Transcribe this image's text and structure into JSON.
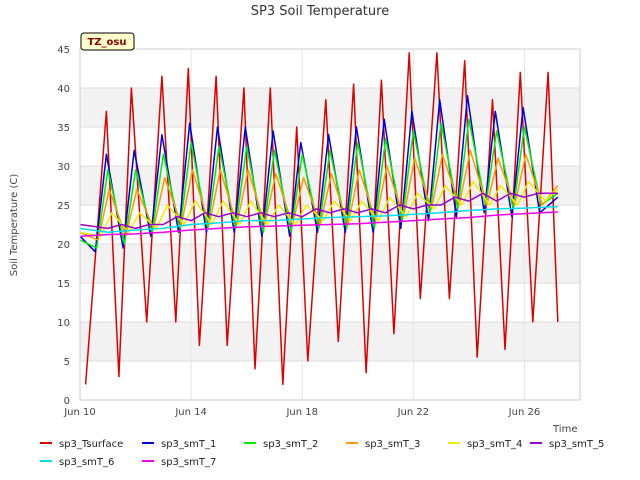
{
  "chart_data": {
    "type": "line",
    "title": "SP3 Soil Temperature",
    "xlabel": "Time",
    "ylabel": "Soil Temperature (C)",
    "badge": "TZ_osu",
    "xlim": [
      0,
      18
    ],
    "ylim": [
      0,
      45
    ],
    "y_ticks": [
      0,
      5,
      10,
      15,
      20,
      25,
      30,
      35,
      40,
      45
    ],
    "x_ticks": [
      {
        "x": 0,
        "label": "Jun 10"
      },
      {
        "x": 4,
        "label": "Jun 14"
      },
      {
        "x": 8,
        "label": "Jun 18"
      },
      {
        "x": 12,
        "label": "Jun 22"
      },
      {
        "x": 16,
        "label": "Jun 26"
      }
    ],
    "grid": true,
    "legend_position": "bottom",
    "series": [
      {
        "name": "sp3_Tsurface",
        "color": "#dd0000",
        "x": [
          0.2,
          0.95,
          1.4,
          1.85,
          2.4,
          2.95,
          3.45,
          3.9,
          4.3,
          4.9,
          5.3,
          5.9,
          6.3,
          6.85,
          7.3,
          7.8,
          8.2,
          8.85,
          9.3,
          9.85,
          10.3,
          10.85,
          11.3,
          11.85,
          12.25,
          12.85,
          13.3,
          13.85,
          14.3,
          14.85,
          15.3,
          15.85,
          16.3,
          16.85,
          17.2
        ],
        "values": [
          2.0,
          37.0,
          3.0,
          40.0,
          10.0,
          41.5,
          10.0,
          42.5,
          7.0,
          41.5,
          7.0,
          40.0,
          4.0,
          40.0,
          2.0,
          35.0,
          5.0,
          38.5,
          7.5,
          40.5,
          3.5,
          41.0,
          8.5,
          44.5,
          13.0,
          44.5,
          13.0,
          43.5,
          5.5,
          38.5,
          6.5,
          42.0,
          10.0,
          42.0,
          10.0
        ]
      },
      {
        "name": "sp3_smT_1",
        "color": "#0000dd",
        "x": [
          0,
          0.55,
          0.95,
          1.55,
          1.95,
          2.55,
          2.95,
          3.55,
          3.95,
          4.55,
          4.95,
          5.55,
          5.95,
          6.55,
          6.95,
          7.55,
          7.95,
          8.55,
          8.95,
          9.55,
          9.95,
          10.55,
          10.95,
          11.55,
          11.95,
          12.55,
          12.95,
          13.55,
          13.95,
          14.55,
          14.95,
          15.55,
          15.95,
          16.55,
          17.2
        ],
        "values": [
          21.0,
          19.0,
          31.5,
          19.5,
          32.0,
          21.0,
          34.0,
          21.5,
          35.5,
          21.5,
          35.0,
          21.5,
          35.0,
          21.0,
          34.5,
          21.0,
          33.0,
          21.5,
          34.0,
          21.5,
          35.0,
          21.5,
          36.0,
          22.0,
          37.0,
          23.0,
          38.5,
          23.5,
          39.0,
          24.0,
          37.0,
          23.5,
          37.5,
          24.0,
          26.0
        ]
      },
      {
        "name": "sp3_smT_2",
        "color": "#00ee00",
        "x": [
          0,
          0.6,
          1.0,
          1.6,
          2.0,
          2.6,
          3.0,
          3.6,
          4.0,
          4.6,
          5.0,
          5.6,
          6.0,
          6.6,
          7.0,
          7.6,
          8.0,
          8.6,
          9.0,
          9.6,
          10.0,
          10.6,
          11.0,
          11.6,
          12.0,
          12.6,
          13.0,
          13.6,
          14.0,
          14.6,
          15.0,
          15.6,
          16.0,
          16.6,
          17.2
        ],
        "values": [
          20.5,
          19.5,
          29.5,
          20.0,
          29.5,
          21.5,
          31.5,
          22.0,
          33.0,
          22.0,
          32.5,
          22.0,
          32.5,
          21.5,
          32.0,
          21.5,
          31.5,
          22.0,
          32.0,
          22.0,
          33.0,
          22.0,
          33.5,
          23.0,
          34.5,
          24.0,
          35.5,
          24.5,
          36.0,
          25.0,
          34.5,
          24.5,
          35.0,
          25.0,
          26.5
        ]
      },
      {
        "name": "sp3_smT_3",
        "color": "#ff9900",
        "x": [
          0,
          0.65,
          1.05,
          1.65,
          2.05,
          2.65,
          3.05,
          3.65,
          4.05,
          4.65,
          5.05,
          5.65,
          6.05,
          6.65,
          7.05,
          7.65,
          8.05,
          8.65,
          9.05,
          9.65,
          10.05,
          10.65,
          11.05,
          11.65,
          12.05,
          12.65,
          13.05,
          13.65,
          14.05,
          14.65,
          15.05,
          15.65,
          16.05,
          16.65,
          17.2
        ],
        "values": [
          21.5,
          20.5,
          27.0,
          21.0,
          27.0,
          22.0,
          28.5,
          22.5,
          29.5,
          22.5,
          29.5,
          22.5,
          29.5,
          22.5,
          29.0,
          22.5,
          28.5,
          22.5,
          29.0,
          22.5,
          29.5,
          23.0,
          30.0,
          23.5,
          31.0,
          24.5,
          31.5,
          25.0,
          32.0,
          25.0,
          31.0,
          25.0,
          31.5,
          25.0,
          27.5
        ]
      },
      {
        "name": "sp3_smT_4",
        "color": "#eeee00",
        "x": [
          0,
          0.75,
          1.15,
          1.75,
          2.15,
          2.75,
          3.15,
          3.75,
          4.15,
          4.75,
          5.15,
          5.75,
          6.15,
          6.75,
          7.15,
          7.75,
          8.15,
          8.75,
          9.15,
          9.75,
          10.15,
          10.75,
          11.15,
          11.75,
          12.15,
          12.75,
          13.15,
          13.75,
          14.15,
          14.75,
          15.15,
          15.75,
          16.15,
          16.75,
          17.2
        ],
        "values": [
          21.5,
          21.0,
          24.0,
          21.5,
          24.0,
          22.0,
          25.0,
          22.5,
          25.5,
          22.5,
          25.5,
          22.5,
          25.5,
          22.5,
          25.0,
          22.5,
          25.0,
          23.0,
          25.5,
          23.0,
          25.5,
          23.0,
          26.0,
          23.5,
          26.5,
          24.5,
          27.5,
          25.0,
          28.0,
          25.0,
          27.5,
          25.0,
          28.0,
          25.5,
          27.0
        ]
      },
      {
        "name": "sp3_smT_5",
        "color": "#9900cc",
        "x": [
          0,
          1.0,
          1.5,
          2.0,
          2.5,
          3.0,
          3.5,
          4.0,
          4.5,
          5.0,
          5.5,
          6.0,
          6.5,
          7.0,
          7.5,
          8.0,
          8.5,
          9.0,
          9.5,
          10.0,
          10.5,
          11.0,
          11.5,
          12.0,
          12.5,
          13.0,
          13.5,
          14.0,
          14.5,
          15.0,
          15.5,
          16.0,
          16.5,
          17.2
        ],
        "values": [
          22.5,
          22.0,
          22.5,
          22.0,
          22.5,
          22.5,
          23.5,
          23.0,
          24.0,
          23.5,
          24.0,
          23.5,
          24.0,
          23.5,
          24.0,
          23.5,
          24.5,
          24.0,
          24.5,
          24.0,
          24.5,
          24.0,
          25.0,
          24.5,
          25.0,
          25.0,
          26.0,
          25.5,
          26.5,
          25.5,
          26.5,
          26.0,
          26.5,
          26.5
        ]
      },
      {
        "name": "sp3_smT_6",
        "color": "#00ddee",
        "x": [
          0,
          1,
          2,
          3,
          4,
          5,
          6,
          7,
          8,
          9,
          10,
          11,
          12,
          13,
          14,
          15,
          16,
          17.2
        ],
        "values": [
          22.0,
          21.5,
          21.8,
          22.0,
          22.5,
          22.7,
          23.0,
          23.0,
          23.2,
          23.4,
          23.5,
          23.6,
          23.8,
          24.0,
          24.3,
          24.5,
          24.6,
          24.8
        ]
      },
      {
        "name": "sp3_smT_7",
        "color": "#ee00ee",
        "x": [
          0,
          1,
          2,
          3,
          4,
          5,
          6,
          7,
          8,
          9,
          10,
          11,
          12,
          13,
          14,
          15,
          16,
          17.2
        ],
        "values": [
          21.0,
          21.2,
          21.3,
          21.5,
          21.8,
          22.0,
          22.2,
          22.3,
          22.4,
          22.5,
          22.6,
          22.8,
          23.0,
          23.2,
          23.4,
          23.7,
          23.9,
          24.1
        ]
      }
    ]
  }
}
